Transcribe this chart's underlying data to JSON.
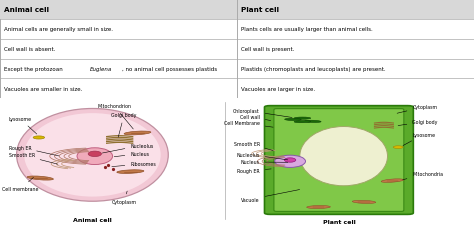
{
  "table_headers": [
    "Animal cell",
    "Plant cell"
  ],
  "table_rows": [
    [
      "Animal cells are generally small in size.",
      "Plants cells are usually larger than animal cells."
    ],
    [
      "Cell wall is absent.",
      "Cell wall is present."
    ],
    [
      "Except the protozoan Euglena, no animal cell possesses plastids",
      "Plastids (chromoplasts and leucoplasts) are present."
    ],
    [
      "Vacuoles are smaller in size.",
      "Vacuoles are larger in size."
    ]
  ],
  "animal_cell_label": "Animal cell",
  "plant_cell_label": "Plant cell",
  "bg_color": "#ffffff",
  "table_header_bg": "#d8d8d8",
  "table_row_bg": "#ffffff",
  "border_color": "#aaaaaa",
  "fs_header": 5.2,
  "fs_row": 4.0,
  "fs_label": 3.4,
  "fs_title": 4.5
}
